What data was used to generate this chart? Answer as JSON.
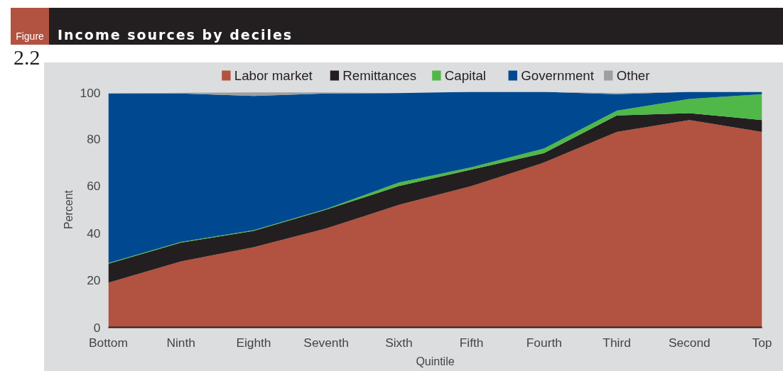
{
  "chart_data": {
    "type": "area",
    "stacked": true,
    "title": "Income sources by deciles",
    "xlabel": "Quintile",
    "ylabel": "Percent",
    "annotations": [
      "Figure",
      "2.2"
    ],
    "categories": [
      "Bottom",
      "Ninth",
      "Eighth",
      "Seventh",
      "Sixth",
      "Fifth",
      "Fourth",
      "Third",
      "Second",
      "Top"
    ],
    "series": [
      {
        "name": "Labor market",
        "color": "#b25240",
        "values": [
          19,
          28,
          34,
          42,
          52,
          60,
          70,
          83,
          88,
          83
        ]
      },
      {
        "name": "Remittances",
        "color": "#231f20",
        "values": [
          8,
          8,
          7,
          8,
          8,
          7,
          4,
          7,
          3,
          5
        ]
      },
      {
        "name": "Capital",
        "color": "#50b848",
        "values": [
          0.3,
          0.3,
          0.3,
          0.3,
          1.5,
          1,
          2,
          2,
          6,
          11
        ]
      },
      {
        "name": "Government",
        "color": "#004990",
        "values": [
          72,
          63,
          57,
          49,
          38,
          32,
          24,
          7,
          3,
          1
        ]
      },
      {
        "name": "Other",
        "color": "#9d9fa2",
        "values": [
          0,
          0.3,
          1.5,
          0.5,
          0,
          0,
          0,
          0.5,
          0,
          0
        ]
      }
    ],
    "ylim": [
      0,
      100
    ],
    "yticks": [
      0,
      20,
      40,
      60,
      80,
      100
    ],
    "grid": false,
    "legend": "top"
  }
}
